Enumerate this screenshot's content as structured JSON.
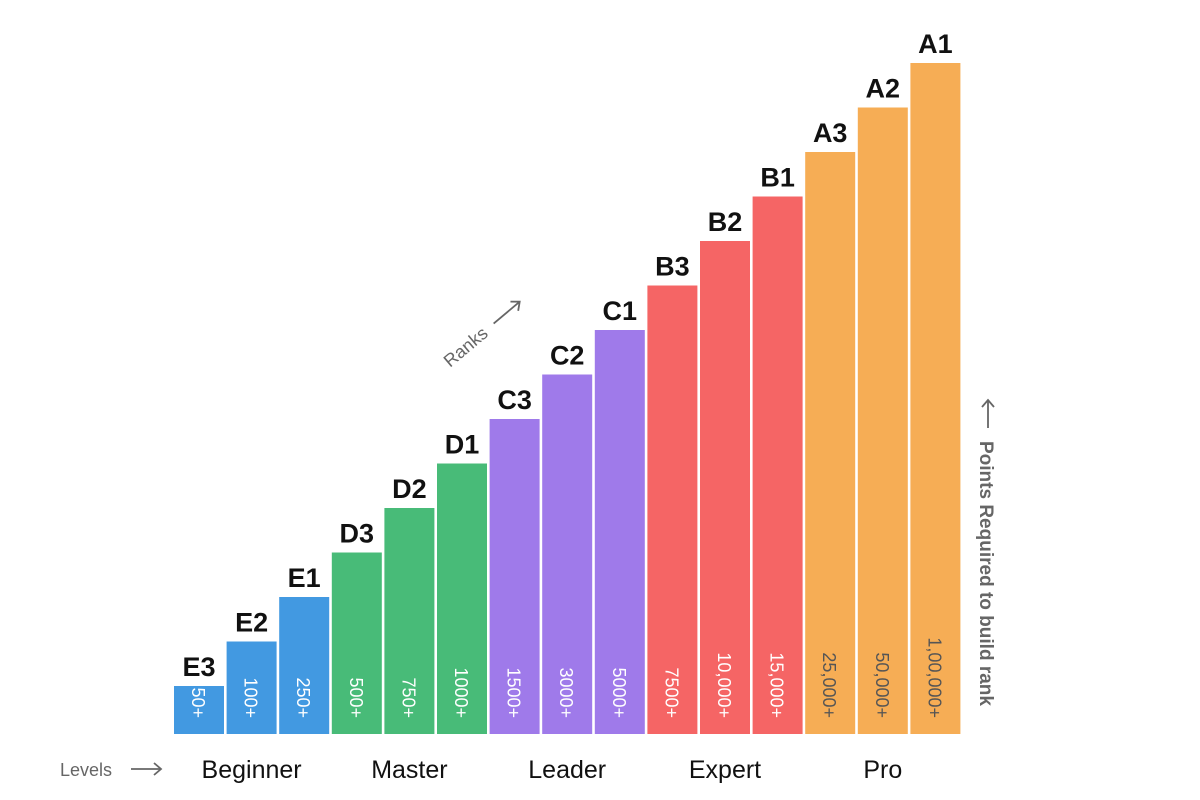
{
  "chart_data": {
    "type": "bar",
    "ranks_label": "Ranks",
    "levels_label": "Levels",
    "axis_label": "Points Required to build rank",
    "levels": [
      {
        "name": "Beginner",
        "color": "#4299e1",
        "text_color": "#ffffff"
      },
      {
        "name": "Master",
        "color": "#48bb78",
        "text_color": "#ffffff"
      },
      {
        "name": "Leader",
        "color": "#9f7aea",
        "text_color": "#ffffff"
      },
      {
        "name": "Expert",
        "color": "#f56565",
        "text_color": "#ffffff"
      },
      {
        "name": "Pro",
        "color": "#f6ad55",
        "text_color": "#555555"
      }
    ],
    "bars": [
      {
        "rank": "E3",
        "points": "50+",
        "level": 0,
        "step": 1
      },
      {
        "rank": "E2",
        "points": "100+",
        "level": 0,
        "step": 2
      },
      {
        "rank": "E1",
        "points": "250+",
        "level": 0,
        "step": 3
      },
      {
        "rank": "D3",
        "points": "500+",
        "level": 1,
        "step": 4
      },
      {
        "rank": "D2",
        "points": "750+",
        "level": 1,
        "step": 5
      },
      {
        "rank": "D1",
        "points": "1000+",
        "level": 1,
        "step": 6
      },
      {
        "rank": "C3",
        "points": "1500+",
        "level": 2,
        "step": 7
      },
      {
        "rank": "C2",
        "points": "3000+",
        "level": 2,
        "step": 8
      },
      {
        "rank": "C1",
        "points": "5000+",
        "level": 2,
        "step": 9
      },
      {
        "rank": "B3",
        "points": "7500+",
        "level": 3,
        "step": 10
      },
      {
        "rank": "B2",
        "points": "10,000+",
        "level": 3,
        "step": 11
      },
      {
        "rank": "B1",
        "points": "15,000+",
        "level": 3,
        "step": 12
      },
      {
        "rank": "A3",
        "points": "25,000+",
        "level": 4,
        "step": 13
      },
      {
        "rank": "A2",
        "points": "50,000+",
        "level": 4,
        "step": 14
      },
      {
        "rank": "A1",
        "points": "1,00,000+",
        "level": 4,
        "step": 15
      }
    ]
  }
}
